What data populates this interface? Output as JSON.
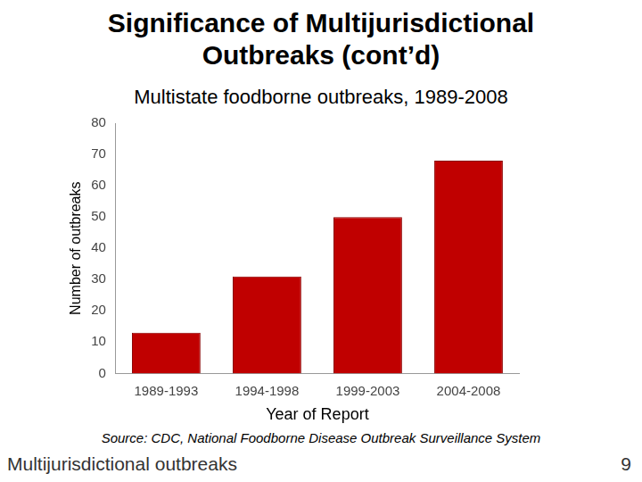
{
  "chart_data": {
    "type": "bar",
    "title": "Significance of Multijurisdictional Outbreaks (cont’d)",
    "subtitle": "Multistate foodborne outbreaks, 1989-2008",
    "y_label": "Number of outbreaks",
    "x_label": "Year of Report",
    "categories": [
      "1989-1993",
      "1994-1998",
      "1999-2003",
      "2004-2008"
    ],
    "values": [
      13,
      31,
      50,
      68
    ],
    "color": "#c00000",
    "ylim": [
      0,
      80
    ],
    "yticks": [
      0,
      10,
      20,
      30,
      40,
      50,
      60,
      70,
      80
    ],
    "grid": false
  },
  "slide": {
    "source": "Source:  CDC, National Foodborne Disease Outbreak Surveillance System",
    "footer": "Multijurisdictional outbreaks",
    "page": 9
  }
}
